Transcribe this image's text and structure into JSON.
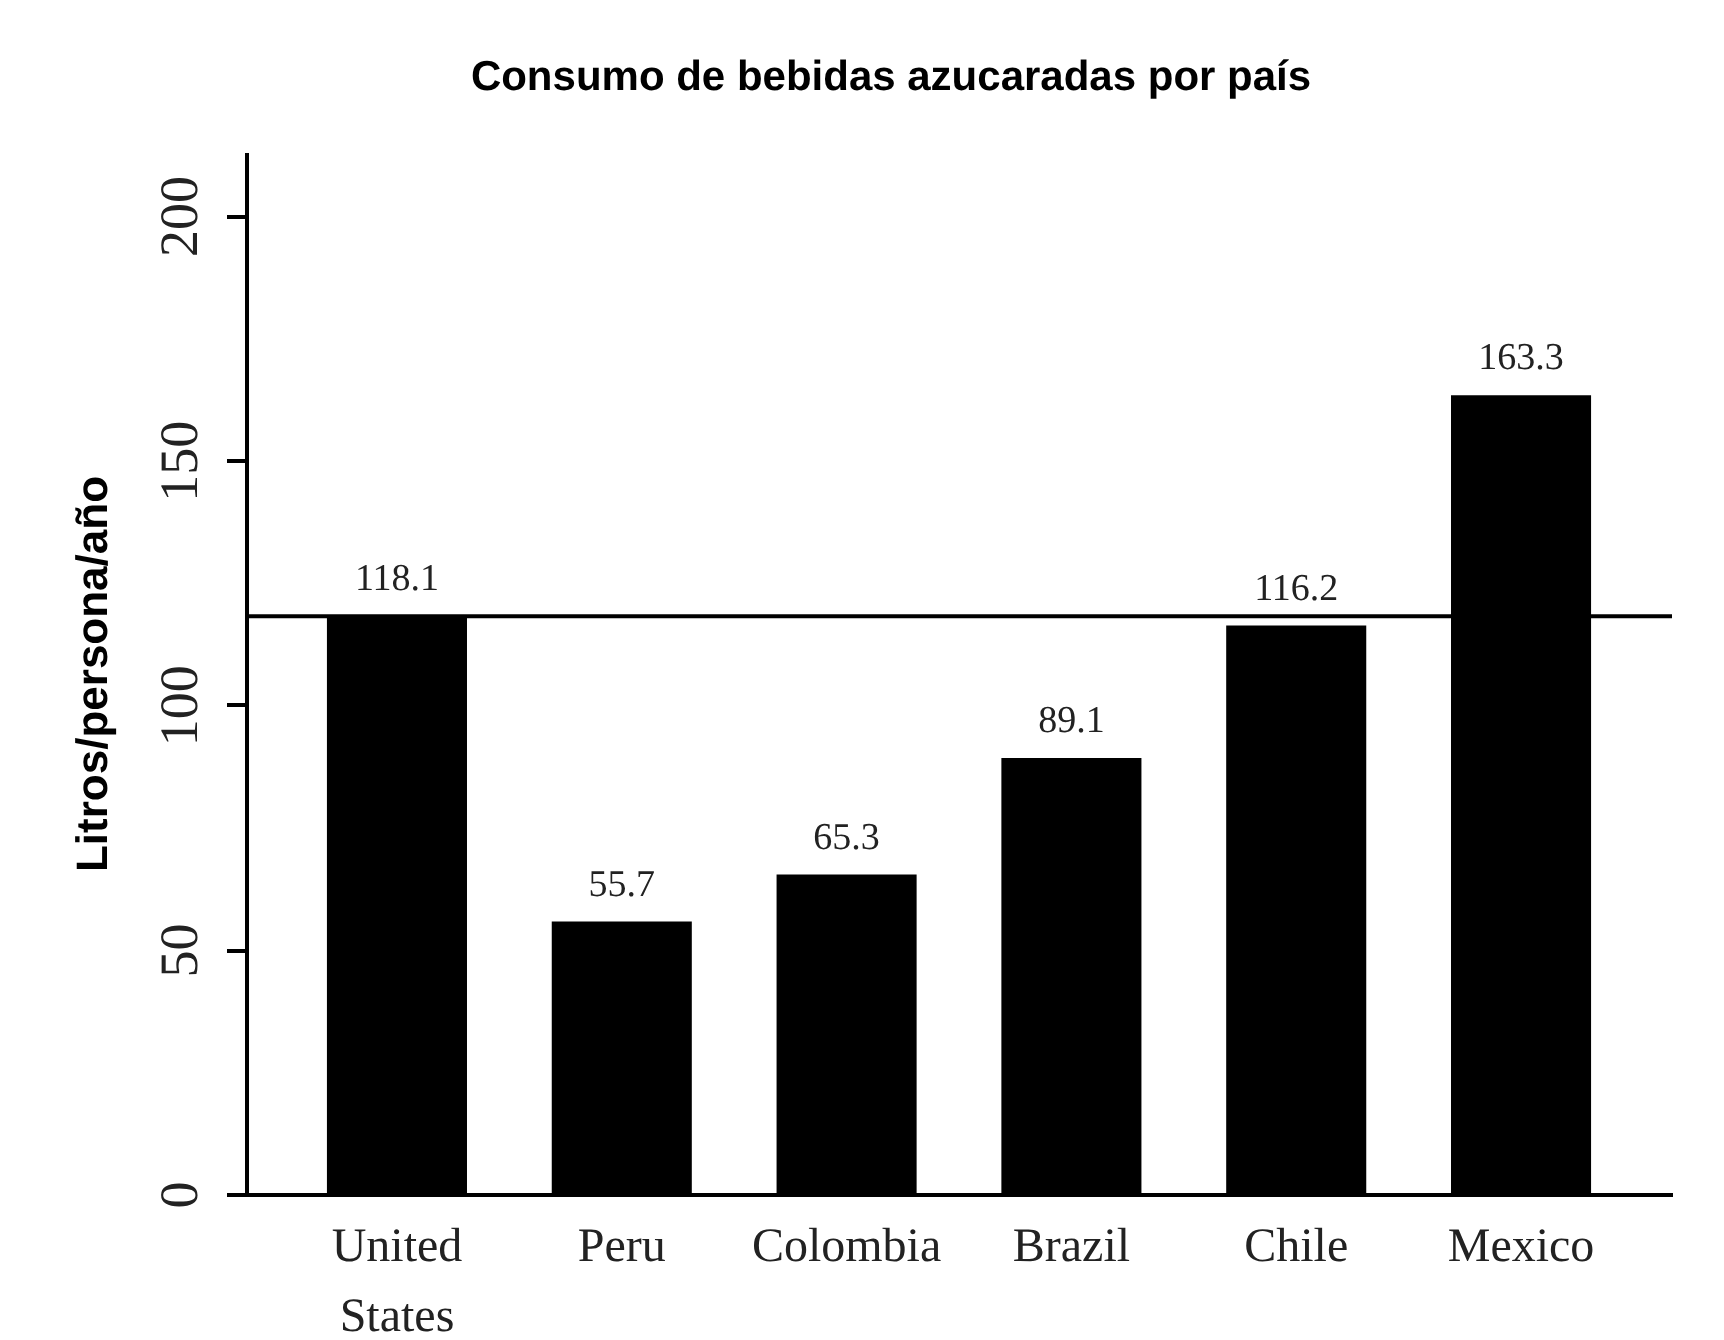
{
  "chart_data": {
    "type": "bar",
    "title": "Consumo de bebidas azucaradas por país",
    "ylabel": "Litros/persona/año",
    "categories": [
      "United States",
      "Peru",
      "Colombia",
      "Brazil",
      "Chile",
      "Mexico"
    ],
    "values": [
      118.1,
      55.7,
      65.3,
      89.1,
      116.2,
      163.3
    ],
    "color": "#000000",
    "ylim": [
      0,
      213
    ],
    "yticks": [
      0,
      50,
      100,
      150,
      200
    ],
    "data_labels": true,
    "ref_lines": [
      {
        "axis": "y",
        "value": 118.1,
        "color": "#000000"
      }
    ]
  }
}
